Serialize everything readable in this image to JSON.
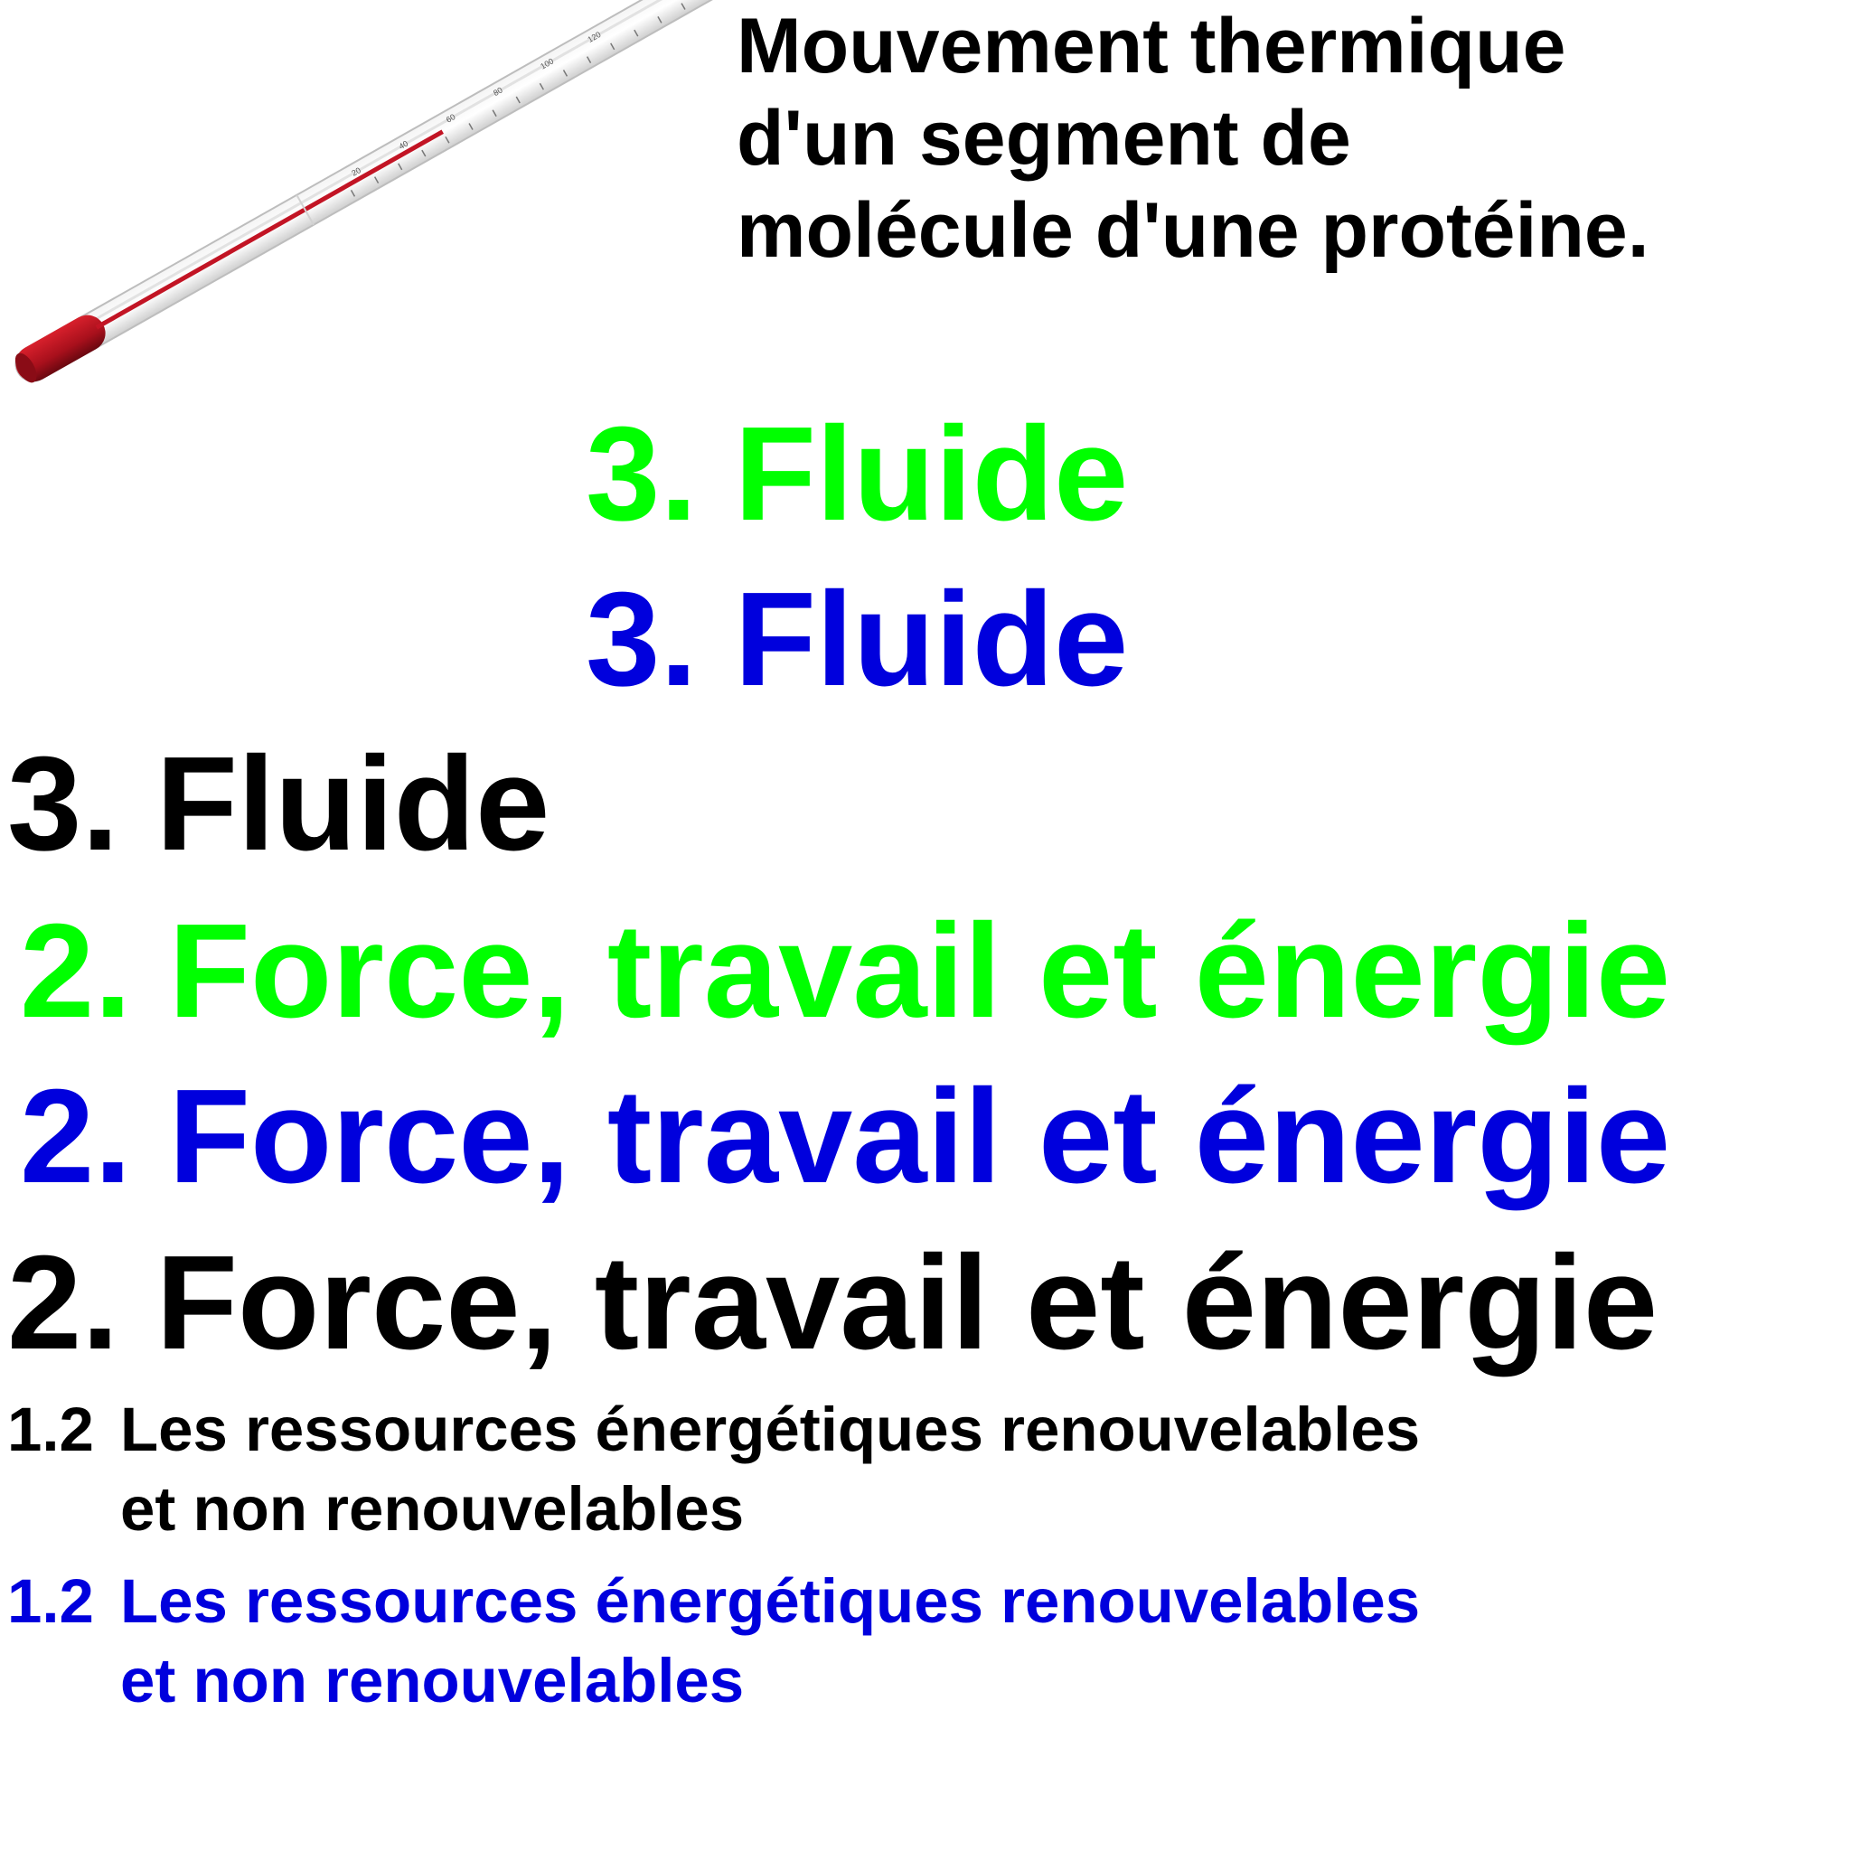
{
  "caption": {
    "lines": [
      "Mouvement thermique",
      "d'un segment de",
      "molécule d'une protéine."
    ]
  },
  "thermometer": {
    "icon": "thermometer-icon",
    "scale_labels": [
      "20",
      "40",
      "60",
      "80",
      "100",
      "120"
    ]
  },
  "headings": {
    "fluide": "3. Fluide",
    "force": "2. Force, travail et énergie",
    "ressources_num": "1.2",
    "ressources_line1": "Les ressources énergétiques renouvelables",
    "ressources_line2": "et non renouvelables"
  },
  "colors": {
    "green": "#00ff00",
    "blue": "#0000dd",
    "black": "#000000",
    "mercury": "#b01020"
  }
}
